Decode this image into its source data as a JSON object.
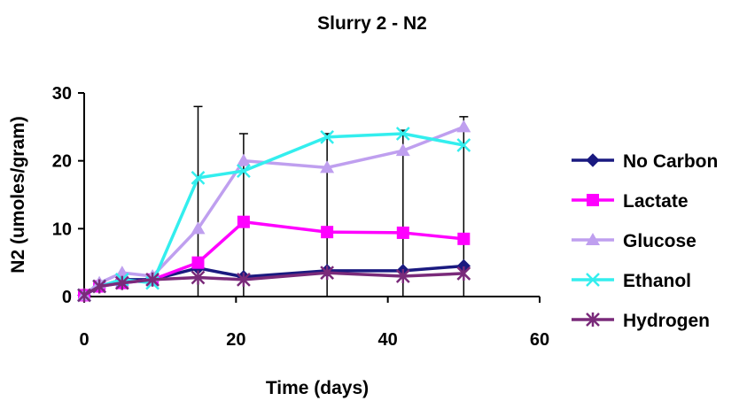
{
  "chart_data": {
    "type": "line",
    "title": "Slurry 2 -  N2",
    "xlabel": "Time (days)",
    "ylabel": "N2 (umoles/gram)",
    "xlim": [
      0,
      60
    ],
    "ylim": [
      0,
      30
    ],
    "xticks": [
      0,
      20,
      40,
      60
    ],
    "yticks": [
      0,
      10,
      20,
      30
    ],
    "grid": false,
    "legend_position": "right",
    "x": [
      0,
      2,
      5,
      9,
      15,
      21,
      32,
      42,
      50
    ],
    "series": [
      {
        "name": "No Carbon",
        "color": "#1a1a80",
        "marker": "diamond",
        "values": [
          0.2,
          1.5,
          2.5,
          2.5,
          4.2,
          2.9,
          3.8,
          3.8,
          4.5
        ]
      },
      {
        "name": "Lactate",
        "color": "#ff00ff",
        "marker": "square",
        "values": [
          0.2,
          1.5,
          2.0,
          2.5,
          5.0,
          11.0,
          9.5,
          9.4,
          8.5
        ]
      },
      {
        "name": "Glucose",
        "color": "#bf9fef",
        "marker": "triangle",
        "values": [
          0.2,
          2.0,
          3.5,
          3.0,
          10.0,
          20.0,
          19.0,
          21.5,
          25.0
        ]
      },
      {
        "name": "Ethanol",
        "color": "#33eeee",
        "marker": "x",
        "values": [
          0.2,
          1.5,
          2.5,
          2.0,
          17.5,
          18.5,
          23.5,
          24.0,
          22.3
        ]
      },
      {
        "name": "Hydrogen",
        "color": "#7a2a7a",
        "marker": "asterisk",
        "values": [
          0.2,
          1.5,
          2.0,
          2.5,
          2.8,
          2.5,
          3.5,
          3.0,
          3.4
        ]
      }
    ],
    "error_bars": [
      {
        "x": 15,
        "low": 0,
        "high": 28
      },
      {
        "x": 21,
        "low": 0,
        "high": 24
      },
      {
        "x": 32,
        "low": 0,
        "high": 24
      },
      {
        "x": 42,
        "low": 0,
        "high": 24.5
      },
      {
        "x": 50,
        "low": 0,
        "high": 26.5
      }
    ]
  }
}
